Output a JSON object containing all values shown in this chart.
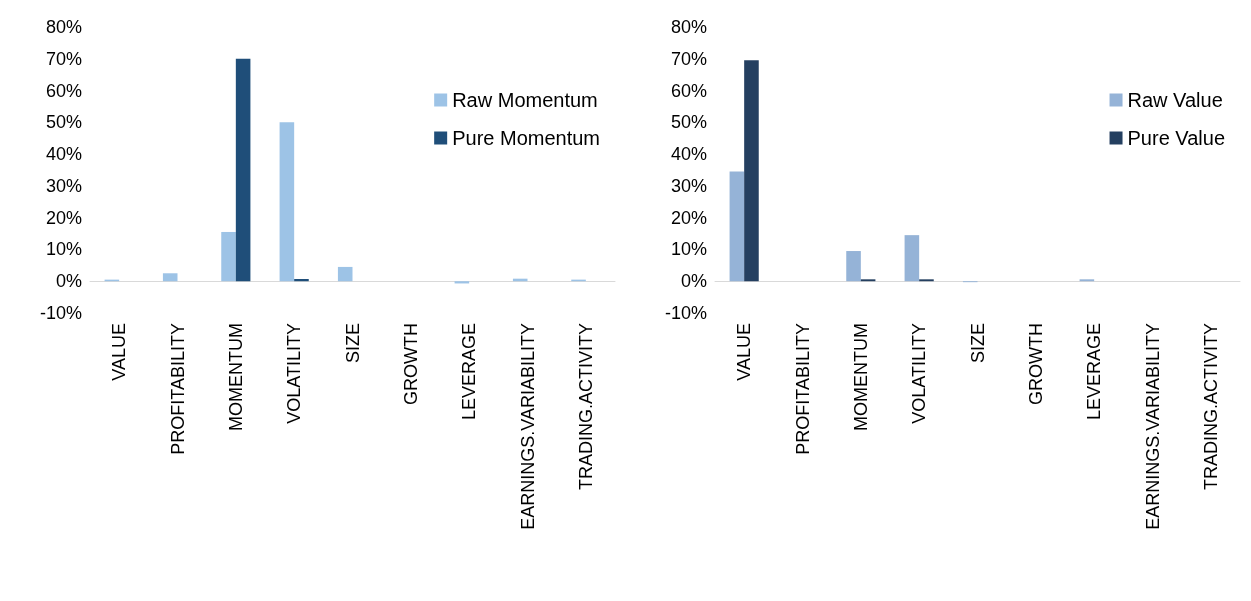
{
  "chart_data": [
    {
      "type": "bar",
      "categories": [
        "VALUE",
        "PROFITABILITY",
        "MOMENTUM",
        "VOLATILITY",
        "SIZE",
        "GROWTH",
        "LEVERAGE",
        "EARNINGS.VARIABILITY",
        "TRADING.ACTIVITY"
      ],
      "series": [
        {
          "name": "Raw Momentum",
          "color": "#9dc3e6",
          "values": [
            0.5,
            2.5,
            15.5,
            50,
            4.5,
            0,
            -0.7,
            0.8,
            0.5
          ]
        },
        {
          "name": "Pure Momentum",
          "color": "#1f4e79",
          "values": [
            0,
            0,
            70,
            0.7,
            0,
            0,
            0,
            0,
            0
          ]
        }
      ],
      "ylim": [
        -10,
        80
      ],
      "yticks": [
        {
          "value": -10,
          "label": "-10%"
        },
        {
          "value": 0,
          "label": "0%"
        },
        {
          "value": 10,
          "label": "10%"
        },
        {
          "value": 20,
          "label": "20%"
        },
        {
          "value": 30,
          "label": "30%"
        },
        {
          "value": 40,
          "label": "40%"
        },
        {
          "value": 50,
          "label": "50%"
        },
        {
          "value": 60,
          "label": "60%"
        },
        {
          "value": 70,
          "label": "70%"
        },
        {
          "value": 80,
          "label": "80%"
        }
      ],
      "grid": false,
      "legend": "top right"
    },
    {
      "type": "bar",
      "categories": [
        "VALUE",
        "PROFITABILITY",
        "MOMENTUM",
        "VOLATILITY",
        "SIZE",
        "GROWTH",
        "LEVERAGE",
        "EARNINGS.VARIABILITY",
        "TRADING.ACTIVITY"
      ],
      "series": [
        {
          "name": "Raw Value",
          "color": "#95b3d7",
          "values": [
            34.5,
            0,
            9.5,
            14.5,
            -0.3,
            0,
            0.6,
            0,
            0
          ]
        },
        {
          "name": "Pure Value",
          "color": "#243f60",
          "values": [
            69.5,
            0,
            0.6,
            0.6,
            0,
            0,
            0,
            0,
            0
          ]
        }
      ],
      "ylim": [
        -10,
        80
      ],
      "yticks": [
        {
          "value": -10,
          "label": "-10%"
        },
        {
          "value": 0,
          "label": "0%"
        },
        {
          "value": 10,
          "label": "10%"
        },
        {
          "value": 20,
          "label": "20%"
        },
        {
          "value": 30,
          "label": "30%"
        },
        {
          "value": 40,
          "label": "40%"
        },
        {
          "value": 50,
          "label": "50%"
        },
        {
          "value": 60,
          "label": "60%"
        },
        {
          "value": 70,
          "label": "70%"
        },
        {
          "value": 80,
          "label": "80%"
        }
      ],
      "grid": false,
      "legend": "top right"
    }
  ]
}
